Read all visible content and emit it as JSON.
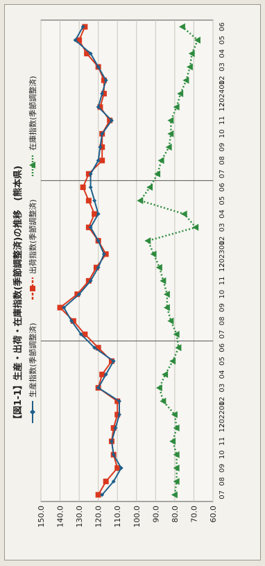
{
  "title": "【図1-1】生産・出荷・在庫指数(季節調整済)の推移　(熊本県)",
  "legend": [
    {
      "label": "生産指数(季節調整済)",
      "color": "#1f5f8b",
      "marker": "diamond"
    },
    {
      "label": "出荷指数(季節調整済)",
      "color": "#d9381e",
      "marker": "square"
    },
    {
      "label": "在庫指数(季節調整済)",
      "color": "#2e8b3e",
      "marker": "triangle"
    }
  ],
  "chart_data": {
    "type": "line",
    "title": "【図1-1】生産・出荷・在庫指数(季節調整済)の推移　(熊本県)",
    "categories": [
      "07",
      "08",
      "09",
      "10",
      "11",
      "12",
      "202201",
      "02",
      "03",
      "04",
      "05",
      "06",
      "07",
      "08",
      "09",
      "10",
      "11",
      "12",
      "202301",
      "02",
      "03",
      "04",
      "05",
      "06",
      "07",
      "08",
      "09",
      "10",
      "11",
      "12",
      "202401",
      "02",
      "03",
      "04",
      "05",
      "06"
    ],
    "ylim": [
      60,
      150
    ],
    "yticks": [
      60.0,
      70.0,
      80.0,
      90.0,
      100.0,
      110.0,
      120.0,
      130.0,
      140.0,
      150.0
    ],
    "grid_x_every": 12,
    "series": [
      {
        "name": "生産指数(季節調整済)",
        "color": "#1f5f8b",
        "style": "solid",
        "values": [
          118,
          112,
          108,
          112,
          113,
          111,
          109,
          109,
          120,
          116,
          112,
          122,
          129,
          134,
          138,
          130,
          124,
          120,
          117,
          120,
          124,
          120,
          122,
          124,
          124,
          120,
          119,
          118,
          113,
          120,
          118,
          116,
          120,
          124,
          132,
          128
        ]
      },
      {
        "name": "出荷指数(季節調整済)",
        "color": "#d9381e",
        "style": "solid",
        "values": [
          120,
          116,
          110,
          112,
          113,
          112,
          110,
          110,
          120,
          118,
          113,
          120,
          127,
          133,
          140,
          131,
          125,
          121,
          116,
          120,
          125,
          122,
          125,
          128,
          125,
          118,
          118,
          118,
          114,
          119,
          117,
          117,
          120,
          126,
          130,
          127
        ]
      },
      {
        "name": "在庫指数(季節調整済)",
        "color": "#2e8b3e",
        "style": "dotted",
        "values": [
          80,
          79,
          79,
          79,
          81,
          79,
          80,
          86,
          88,
          85,
          81,
          78,
          79,
          82,
          84,
          84,
          86,
          88,
          91,
          94,
          69,
          75,
          98,
          93,
          89,
          87,
          83,
          82,
          82,
          79,
          77,
          74,
          72,
          71,
          68,
          76
        ]
      }
    ]
  }
}
